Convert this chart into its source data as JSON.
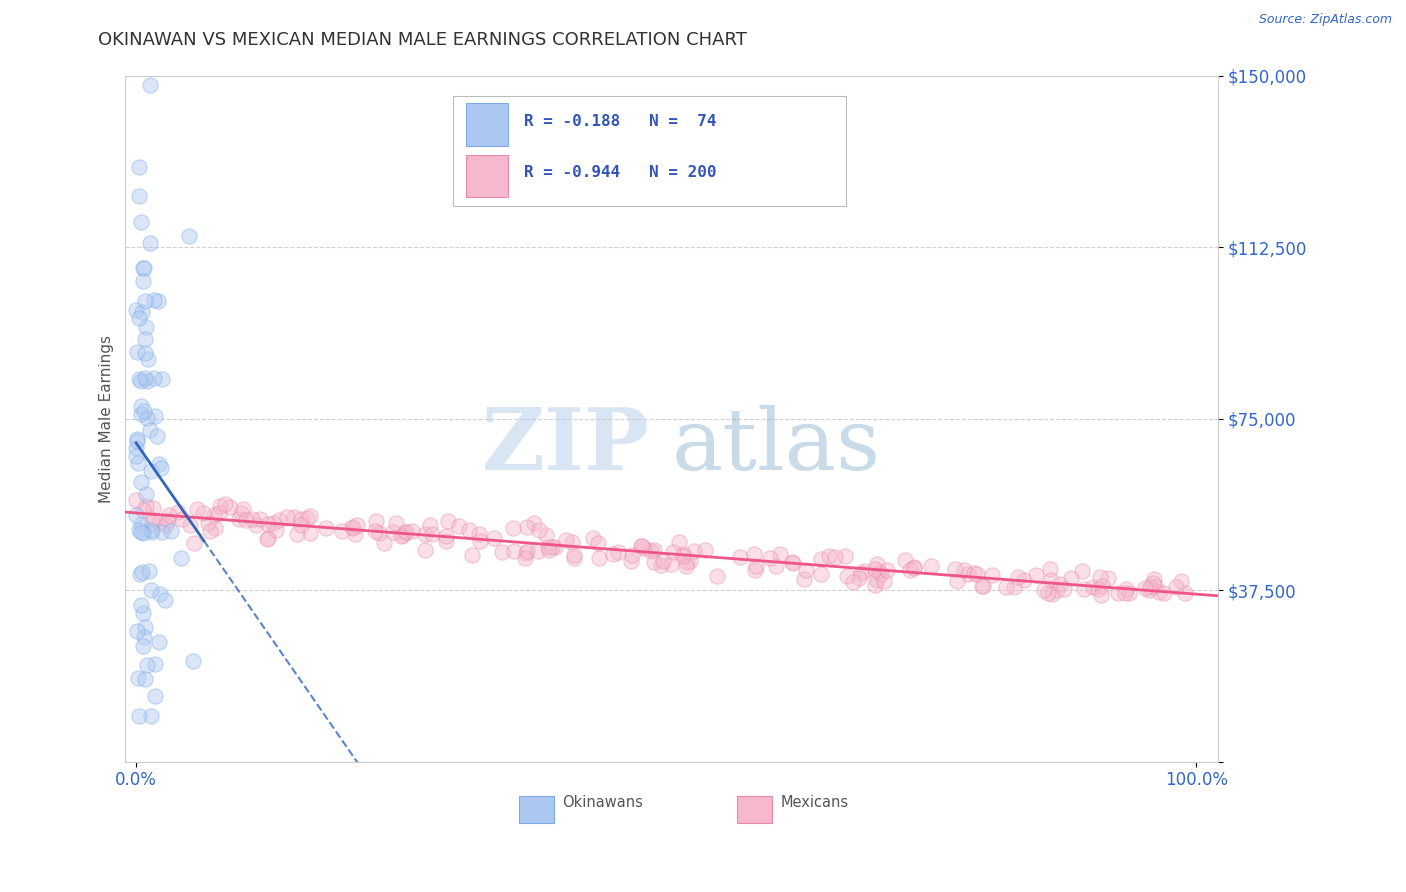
{
  "title": "OKINAWAN VS MEXICAN MEDIAN MALE EARNINGS CORRELATION CHART",
  "source_text": "Source: ZipAtlas.com",
  "ylabel": "Median Male Earnings",
  "xmin": 0.0,
  "xmax": 1.0,
  "ymin": 0,
  "ymax": 150000,
  "yticks": [
    0,
    37500,
    75000,
    112500,
    150000
  ],
  "ytick_labels": [
    "",
    "$37,500",
    "$75,000",
    "$112,500",
    "$150,000"
  ],
  "xtick_labels": [
    "0.0%",
    "100.0%"
  ],
  "grid_color": "#cccccc",
  "background_color": "#ffffff",
  "okinawan_color": "#adc8f0",
  "okinawan_edge_color": "#7aaae8",
  "mexican_color": "#f5b8cc",
  "mexican_edge_color": "#e888aa",
  "okinawan_R": -0.188,
  "okinawan_N": 74,
  "mexican_R": -0.944,
  "mexican_N": 200,
  "okinawan_line_color": "#3366bb",
  "mexican_line_color": "#ee5588",
  "legend_R_color": "#3355bb",
  "watermark_zip_color": "#b8d0e8",
  "watermark_atlas_color": "#88b0d0",
  "title_color": "#333333",
  "title_fontsize": 13,
  "axis_label_color": "#555555",
  "tick_color": "#3366cc",
  "source_color": "#3366cc",
  "marker_size": 120,
  "marker_alpha": 0.45,
  "legend_text_color": "#3355bb"
}
